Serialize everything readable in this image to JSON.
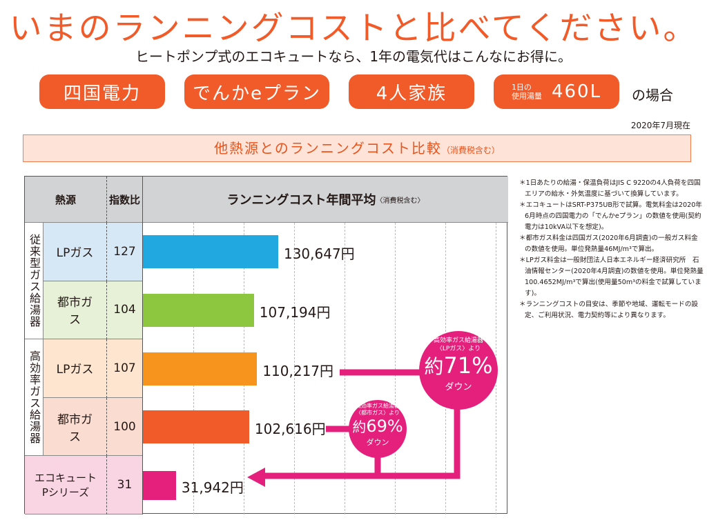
{
  "header": {
    "title": "いまのランニングコストと比べてください。",
    "subtitle": "ヒートポンプ式のエコキュートなら、1年の電気代はこんなにお得に。",
    "conditions": {
      "utility": "四国電力",
      "plan": "でんかeプラン",
      "family": "4人家族",
      "usage_label_1": "1日の",
      "usage_label_2": "使用湯量",
      "usage_value": "460L",
      "suffix": "の場合"
    },
    "date": "2020年7月現在"
  },
  "banner": {
    "title": "他熱源とのランニングコスト比較",
    "note": "（消費税含む）"
  },
  "table": {
    "col_source": "熱源",
    "col_index": "指数比",
    "col_cost": "ランニングコスト年間平均",
    "col_cost_note": "〈消費税含む〉",
    "groups": [
      "従来型ガス給湯器",
      "高効率ガス給湯器"
    ]
  },
  "chart_data": {
    "type": "bar",
    "orientation": "horizontal",
    "title": "ランニングコスト年間平均",
    "categories": [
      "LPガス",
      "都市ガス",
      "LPガス",
      "都市ガス",
      "エコキュートPシリーズ"
    ],
    "category_groups": [
      "従来型ガス給湯器",
      "従来型ガス給湯器",
      "高効率ガス給湯器",
      "高効率ガス給湯器",
      ""
    ],
    "index_ratio": [
      127,
      104,
      107,
      100,
      31
    ],
    "values": [
      130647,
      107194,
      110217,
      102616,
      31942
    ],
    "value_labels": [
      "130,647円",
      "107,194円",
      "110,217円",
      "102,616円",
      "31,942円"
    ],
    "bar_colors": [
      "#22a8e0",
      "#8dc63f",
      "#f7941d",
      "#f15a29",
      "#e5207c"
    ],
    "row_colors": [
      "#d6e8f6",
      "#e6f1d7",
      "#fde5cf",
      "#fbdcd0",
      "#f9d5e3"
    ],
    "xlim": [
      0,
      350000
    ],
    "grid": true,
    "units": "円"
  },
  "callouts": [
    {
      "from": "高効率ガス給湯器",
      "source": "〈LPガス〉より",
      "prefix": "約",
      "percent": "71%",
      "label": "ダウン"
    },
    {
      "from": "高効率ガス給湯器",
      "source": "〈都市ガス〉より",
      "prefix": "約",
      "percent": "69%",
      "label": "ダウン"
    }
  ],
  "notes": [
    "＊1日あたりの給湯・保温負荷はJIS C 9220の4人負荷を四国エリアの給水・外気温度に基づいて換算しています。",
    "＊エコキュートはSRT-P375UB形で試算。電気料金は2020年6月時点の四国電力の「でんかeプラン」の数値を使用(契約電力は10kVA以下を想定)。",
    "＊都市ガス料金は四国ガス(2020年6月調査)の一般ガス料金の数値を使用。単位発熱量46MJ/m³で算出。",
    "＊LPガス料金は一般財団法人日本エネルギー経済研究所　石油情報センター(2020年4月調査)の数値を使用。単位発熱量100.4652MJ/m³で算出(使用量50m³の料金で試算しています)。",
    "＊ランニングコストの目安は、季節や地域、運転モードの設定、ご利用状況、電力契約等により異なります。"
  ]
}
